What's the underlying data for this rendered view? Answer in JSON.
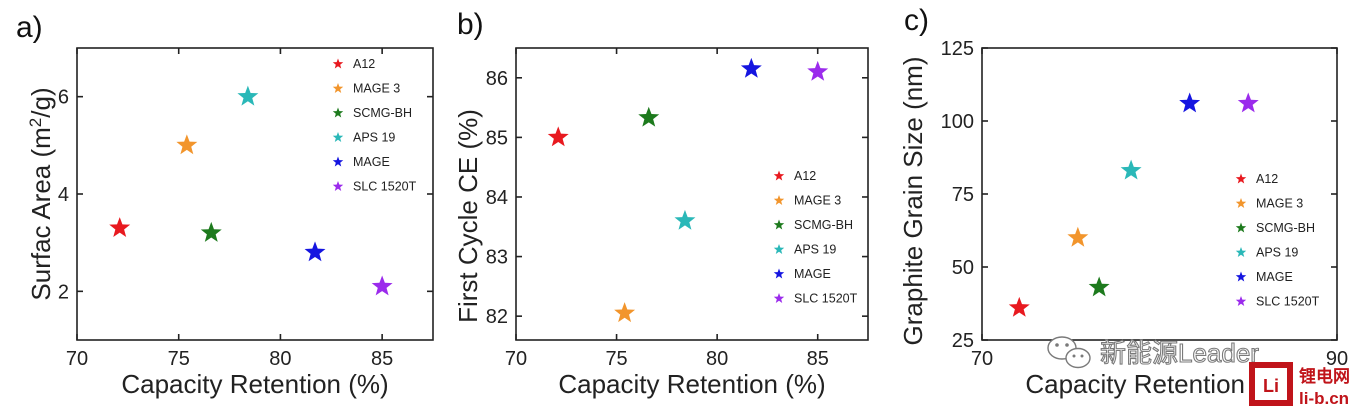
{
  "chart_data": [
    {
      "type": "scatter",
      "panel_label": "a)",
      "xlabel": "Capacity Retention (%)",
      "ylabel_parts": [
        "Surfac Area (m",
        "2",
        "/g)"
      ],
      "xlim": [
        70,
        87.5
      ],
      "ylim": [
        1,
        7
      ],
      "xticks": [
        70,
        75,
        80,
        85
      ],
      "yticks": [
        2,
        4,
        6
      ],
      "legend_position": "top-right",
      "series": [
        {
          "name": "A12",
          "color": "#e8191f",
          "x": 72.1,
          "y": 3.3
        },
        {
          "name": "MAGE 3",
          "color": "#f2952c",
          "x": 75.4,
          "y": 5.0
        },
        {
          "name": "SCMG-BH",
          "color": "#1d7a1d",
          "x": 76.6,
          "y": 3.2
        },
        {
          "name": "APS 19",
          "color": "#2ab8b8",
          "x": 78.4,
          "y": 6.0
        },
        {
          "name": "MAGE",
          "color": "#1515e0",
          "x": 81.7,
          "y": 2.8
        },
        {
          "name": "SLC 1520T",
          "color": "#9b2bec",
          "x": 85.0,
          "y": 2.1
        }
      ]
    },
    {
      "type": "scatter",
      "panel_label": "b)",
      "xlabel": "Capacity Retention (%)",
      "ylabel": "First Cycle CE (%)",
      "xlim": [
        70,
        87.5
      ],
      "ylim": [
        81.6,
        86.5
      ],
      "xticks": [
        70,
        75,
        80,
        85
      ],
      "yticks": [
        82,
        83,
        84,
        85,
        86
      ],
      "legend_position": "bottom-right",
      "series": [
        {
          "name": "A12",
          "color": "#e8191f",
          "x": 72.1,
          "y": 85.0
        },
        {
          "name": "MAGE 3",
          "color": "#f2952c",
          "x": 75.4,
          "y": 82.05
        },
        {
          "name": "SCMG-BH",
          "color": "#1d7a1d",
          "x": 76.6,
          "y": 85.33
        },
        {
          "name": "APS 19",
          "color": "#2ab8b8",
          "x": 78.4,
          "y": 83.6
        },
        {
          "name": "MAGE",
          "color": "#1515e0",
          "x": 81.7,
          "y": 86.15
        },
        {
          "name": "SLC 1520T",
          "color": "#9b2bec",
          "x": 85.0,
          "y": 86.1
        }
      ]
    },
    {
      "type": "scatter",
      "panel_label": "c)",
      "xlabel": "Capacity Retention (%)",
      "ylabel": "Graphite Grain Size (nm)",
      "xlim": [
        70,
        90
      ],
      "ylim": [
        25,
        125
      ],
      "xticks": [
        70,
        90
      ],
      "yticks": [
        25,
        50,
        75,
        100,
        125
      ],
      "legend_position": "bottom-right",
      "series": [
        {
          "name": "A12",
          "color": "#e8191f",
          "x": 72.1,
          "y": 36
        },
        {
          "name": "MAGE 3",
          "color": "#f2952c",
          "x": 75.4,
          "y": 60
        },
        {
          "name": "SCMG-BH",
          "color": "#1d7a1d",
          "x": 76.6,
          "y": 43
        },
        {
          "name": "APS 19",
          "color": "#2ab8b8",
          "x": 78.4,
          "y": 83
        },
        {
          "name": "MAGE",
          "color": "#1515e0",
          "x": 81.7,
          "y": 106
        },
        {
          "name": "SLC 1520T",
          "color": "#9b2bec",
          "x": 85.0,
          "y": 106
        }
      ]
    }
  ],
  "watermark": {
    "text": "新能源Leader",
    "logo_line1": "锂电网",
    "logo_line2": "li-b.cn",
    "logo_mark": "Li",
    "logo_color": "#c0141a"
  }
}
